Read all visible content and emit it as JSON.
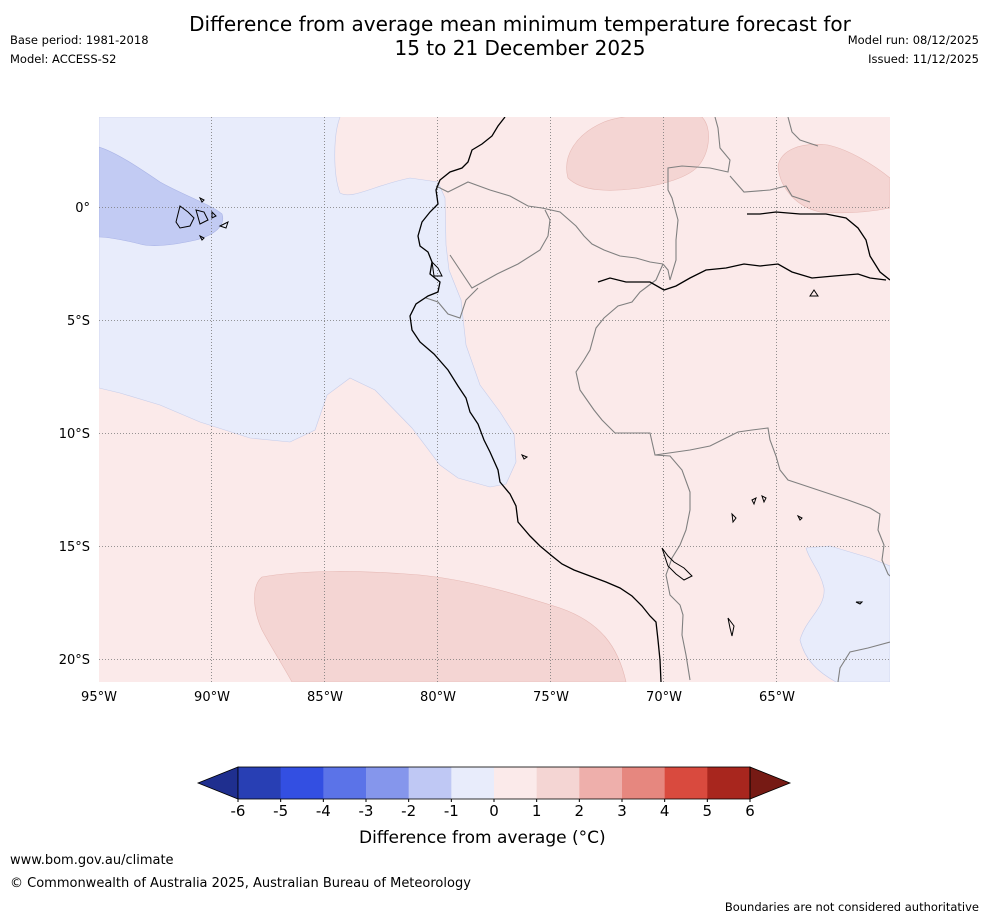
{
  "title": {
    "line1": "Difference from average mean minimum temperature forecast for",
    "line2": "15 to 21 December 2025"
  },
  "meta": {
    "base_period": "Base period: 1981-2018",
    "model": "Model: ACCESS-S2",
    "model_run": "Model run: 08/12/2025",
    "issued": "Issued: 11/12/2025"
  },
  "map": {
    "lon_range": [
      -95,
      -60
    ],
    "lat_range": [
      -21,
      4
    ],
    "lon_ticks": [
      {
        "value": -95,
        "label": "95°W"
      },
      {
        "value": -90,
        "label": "90°W"
      },
      {
        "value": -85,
        "label": "85°W"
      },
      {
        "value": -80,
        "label": "80°W"
      },
      {
        "value": -75,
        "label": "75°W"
      },
      {
        "value": -70,
        "label": "70°W"
      },
      {
        "value": -65,
        "label": "65°W"
      }
    ],
    "lat_ticks": [
      {
        "value": 0,
        "label": "0°"
      },
      {
        "value": -5,
        "label": "5°S"
      },
      {
        "value": -10,
        "label": "10°S"
      },
      {
        "value": -15,
        "label": "15°S"
      },
      {
        "value": -20,
        "label": "20°S"
      }
    ]
  },
  "colorbar": {
    "ticks": [
      "-6",
      "-5",
      "-4",
      "-3",
      "-2",
      "-1",
      "0",
      "1",
      "2",
      "3",
      "4",
      "5",
      "6"
    ],
    "colors": [
      "#1f2f8f",
      "#283fb4",
      "#334fe2",
      "#5b73e8",
      "#8596ec",
      "#bfc8f4",
      "#e8ecfb",
      "#fbeaea",
      "#f4d5d3",
      "#eeafab",
      "#e6877f",
      "#d94a3e",
      "#a8261e",
      "#761a14"
    ],
    "label": "Difference from average ($^\\circ$C)",
    "label_display": "Difference from average (°C)"
  },
  "footer": {
    "url": "www.bom.gov.au/climate",
    "copyright": "© Commonwealth of Australia 2025, Australian Bureau of Meteorology",
    "disclaimer": "Boundaries are not considered authoritative"
  }
}
